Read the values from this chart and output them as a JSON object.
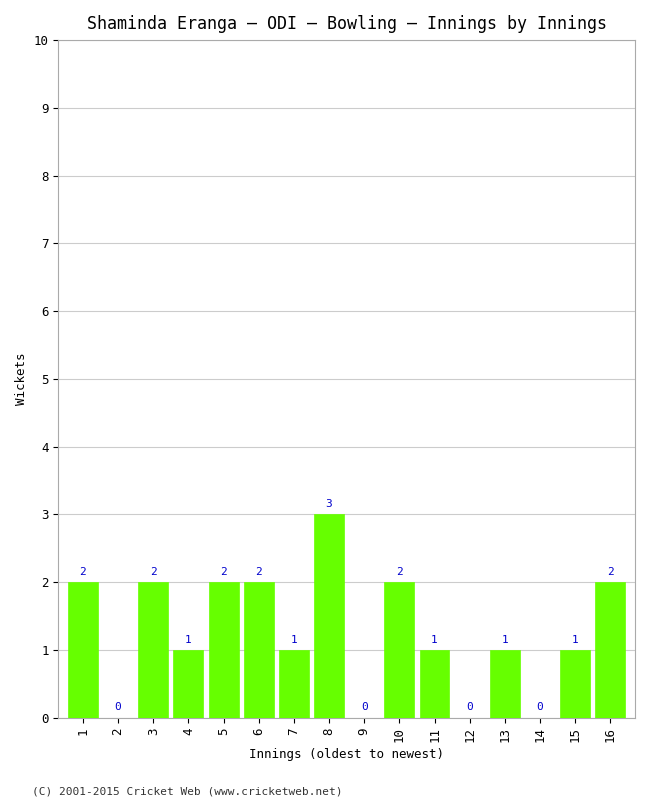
{
  "title": "Shaminda Eranga – ODI – Bowling – Innings by Innings",
  "xlabel": "Innings (oldest to newest)",
  "ylabel": "Wickets",
  "innings": [
    1,
    2,
    3,
    4,
    5,
    6,
    7,
    8,
    9,
    10,
    11,
    12,
    13,
    14,
    15,
    16
  ],
  "wickets": [
    2,
    0,
    2,
    1,
    2,
    2,
    1,
    3,
    0,
    2,
    1,
    0,
    1,
    0,
    1,
    2
  ],
  "bar_color": "#66ff00",
  "bar_edge_color": "#66ff00",
  "label_color": "#0000cc",
  "ylim": [
    0,
    10
  ],
  "yticks": [
    0,
    1,
    2,
    3,
    4,
    5,
    6,
    7,
    8,
    9,
    10
  ],
  "bg_color": "#ffffff",
  "grid_color": "#cccccc",
  "title_fontsize": 12,
  "axis_label_fontsize": 9,
  "tick_fontsize": 9,
  "bar_label_fontsize": 8,
  "footer": "(C) 2001-2015 Cricket Web (www.cricketweb.net)",
  "footer_fontsize": 8
}
